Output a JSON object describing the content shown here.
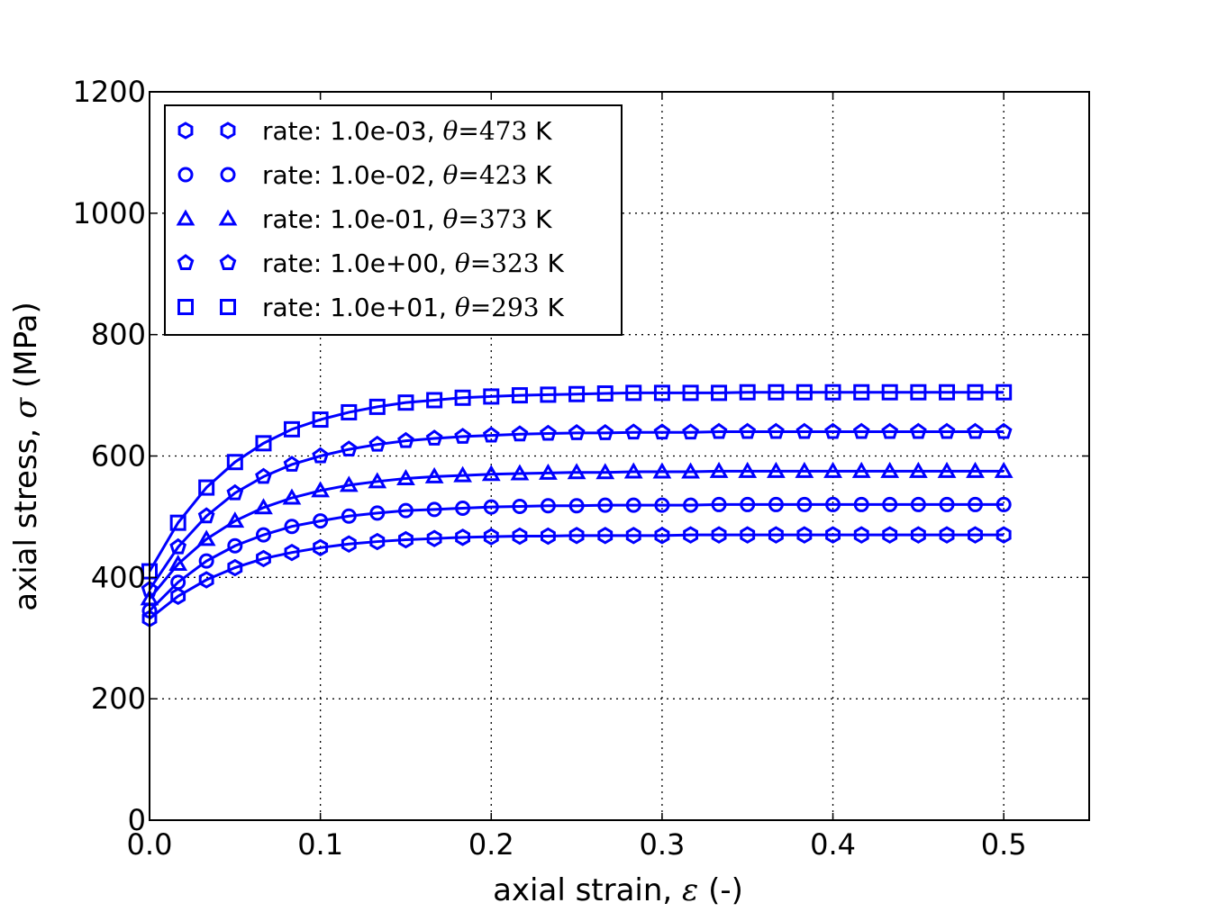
{
  "chart_data": {
    "type": "line",
    "xlabel": {
      "text": "axial strain, ",
      "symbol": "ε",
      "unit": " (-)"
    },
    "ylabel": {
      "text": "axial stress, ",
      "symbol": "σ",
      "unit": " (MPa)"
    },
    "xlim": [
      0,
      0.55
    ],
    "ylim": [
      0,
      1200
    ],
    "xticks": [
      "0.0",
      "0.1",
      "0.2",
      "0.3",
      "0.4",
      "0.5"
    ],
    "yticks": [
      "0",
      "200",
      "400",
      "600",
      "800",
      "1000",
      "1200"
    ],
    "grid": true,
    "legend_position": "top-left",
    "color": "#0000ff",
    "x": [
      0,
      0.0167,
      0.0333,
      0.05,
      0.0667,
      0.0833,
      0.1,
      0.1167,
      0.1333,
      0.15,
      0.1667,
      0.1833,
      0.2,
      0.2167,
      0.2333,
      0.25,
      0.2667,
      0.2833,
      0.3,
      0.3167,
      0.3333,
      0.35,
      0.3667,
      0.3833,
      0.4,
      0.4167,
      0.4333,
      0.45,
      0.4667,
      0.4833,
      0.5
    ],
    "series": [
      {
        "rate": "rate: 1.0e-03, ",
        "theta": "θ",
        "eq": "=473",
        "unit": " K",
        "marker": "hexagon",
        "values": [
          332,
          369,
          396,
          416,
          431,
          441,
          449,
          455,
          459,
          462,
          464,
          466,
          467,
          468,
          468,
          469,
          469,
          469,
          469,
          470,
          470,
          470,
          470,
          470,
          470,
          470,
          470,
          470,
          470,
          470,
          470
        ]
      },
      {
        "rate": "rate: 1.0e-02, ",
        "theta": "θ",
        "eq": "=423",
        "unit": " K",
        "marker": "circle",
        "values": [
          345,
          392,
          427,
          452,
          470,
          484,
          493,
          501,
          506,
          510,
          512,
          514,
          516,
          517,
          518,
          518,
          519,
          519,
          519,
          519,
          520,
          520,
          520,
          520,
          520,
          520,
          520,
          520,
          520,
          520,
          520
        ]
      },
      {
        "rate": "rate: 1.0e-01, ",
        "theta": "θ",
        "eq": "=373",
        "unit": " K",
        "marker": "triangle",
        "values": [
          365,
          422,
          463,
          493,
          515,
          531,
          543,
          552,
          558,
          563,
          566,
          568,
          570,
          571,
          572,
          573,
          573,
          574,
          574,
          574,
          575,
          575,
          575,
          575,
          575,
          575,
          575,
          575,
          575,
          575,
          575
        ]
      },
      {
        "rate": "rate: 1.0e+00, ",
        "theta": "θ",
        "eq": "=323",
        "unit": " K",
        "marker": "pentagon",
        "values": [
          380,
          450,
          501,
          539,
          566,
          586,
          600,
          611,
          619,
          625,
          629,
          632,
          634,
          636,
          637,
          638,
          638,
          639,
          639,
          639,
          640,
          640,
          640,
          640,
          640,
          640,
          640,
          640,
          640,
          640,
          640
        ]
      },
      {
        "rate": "rate: 1.0e+01, ",
        "theta": "θ",
        "eq": "=293",
        "unit": " K",
        "marker": "square",
        "values": [
          410,
          490,
          548,
          590,
          621,
          644,
          660,
          672,
          681,
          688,
          692,
          696,
          698,
          700,
          701,
          702,
          703,
          704,
          704,
          704,
          704,
          705,
          705,
          705,
          705,
          705,
          705,
          705,
          705,
          705,
          705
        ]
      }
    ]
  }
}
